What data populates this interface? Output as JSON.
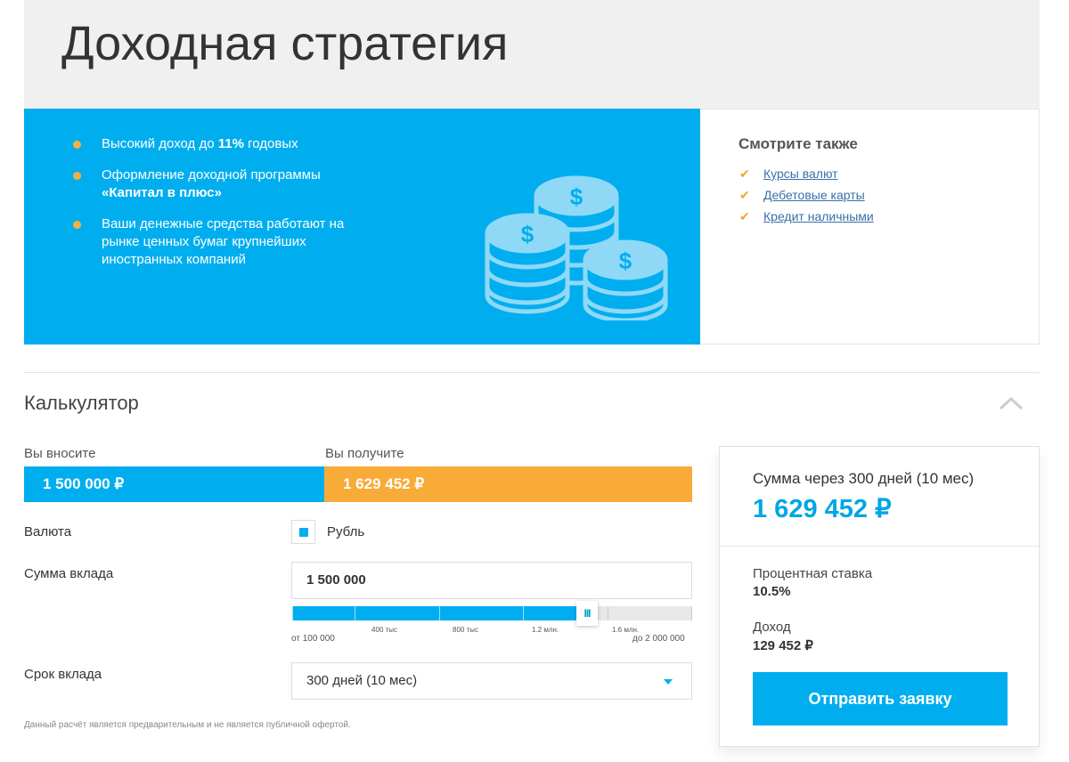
{
  "page_title": "Доходная стратегия",
  "banner": {
    "items": [
      {
        "pre": "Высокий доход до ",
        "bold": "11%",
        "post": " годовых"
      },
      {
        "pre": "Оформление доходной программы ",
        "bold": "«Капитал в плюс»",
        "post": ""
      },
      {
        "pre": "Ваши денежные средства работают на рынке ценных бумаг крупнейших иностранных компаний",
        "bold": "",
        "post": ""
      }
    ],
    "icon": "coins-dollar-icon"
  },
  "see_also": {
    "title": "Смотрите также",
    "links": [
      "Курсы валют",
      "Дебетовые карты",
      "Кредит наличными"
    ]
  },
  "calculator": {
    "title": "Калькулятор",
    "you_pay_label": "Вы вносите",
    "you_pay_value": "1 500 000 ₽",
    "you_get_label": "Вы получите",
    "you_get_value": "1 629 452 ₽",
    "currency_label": "Валюта",
    "currency_value": "Рубль",
    "amount_label": "Сумма вклада",
    "amount_value": "1 500 000",
    "slider": {
      "min_label": "от 100 000",
      "max_label": "до 2 000 000",
      "ticks": [
        "400 тыс",
        "800 тыс",
        "1.2 млн.",
        "1.6 млн."
      ],
      "min": 100000,
      "max": 2000000,
      "value": 1500000
    },
    "term_label": "Срок вклада",
    "term_value": "300 дней (10 мес)",
    "note": "Данный расчёт является предварительным и не является публичной офертой."
  },
  "summary": {
    "title": "Сумма через 300 дней (10 мес)",
    "total": "1 629 452 ₽",
    "rate_label": "Процентная ставка",
    "rate_value": "10.5%",
    "income_label": "Доход",
    "income_value": "129 452 ₽",
    "submit": "Отправить заявку"
  },
  "colors": {
    "blue": "#00aeef",
    "orange": "#f8ab37"
  }
}
